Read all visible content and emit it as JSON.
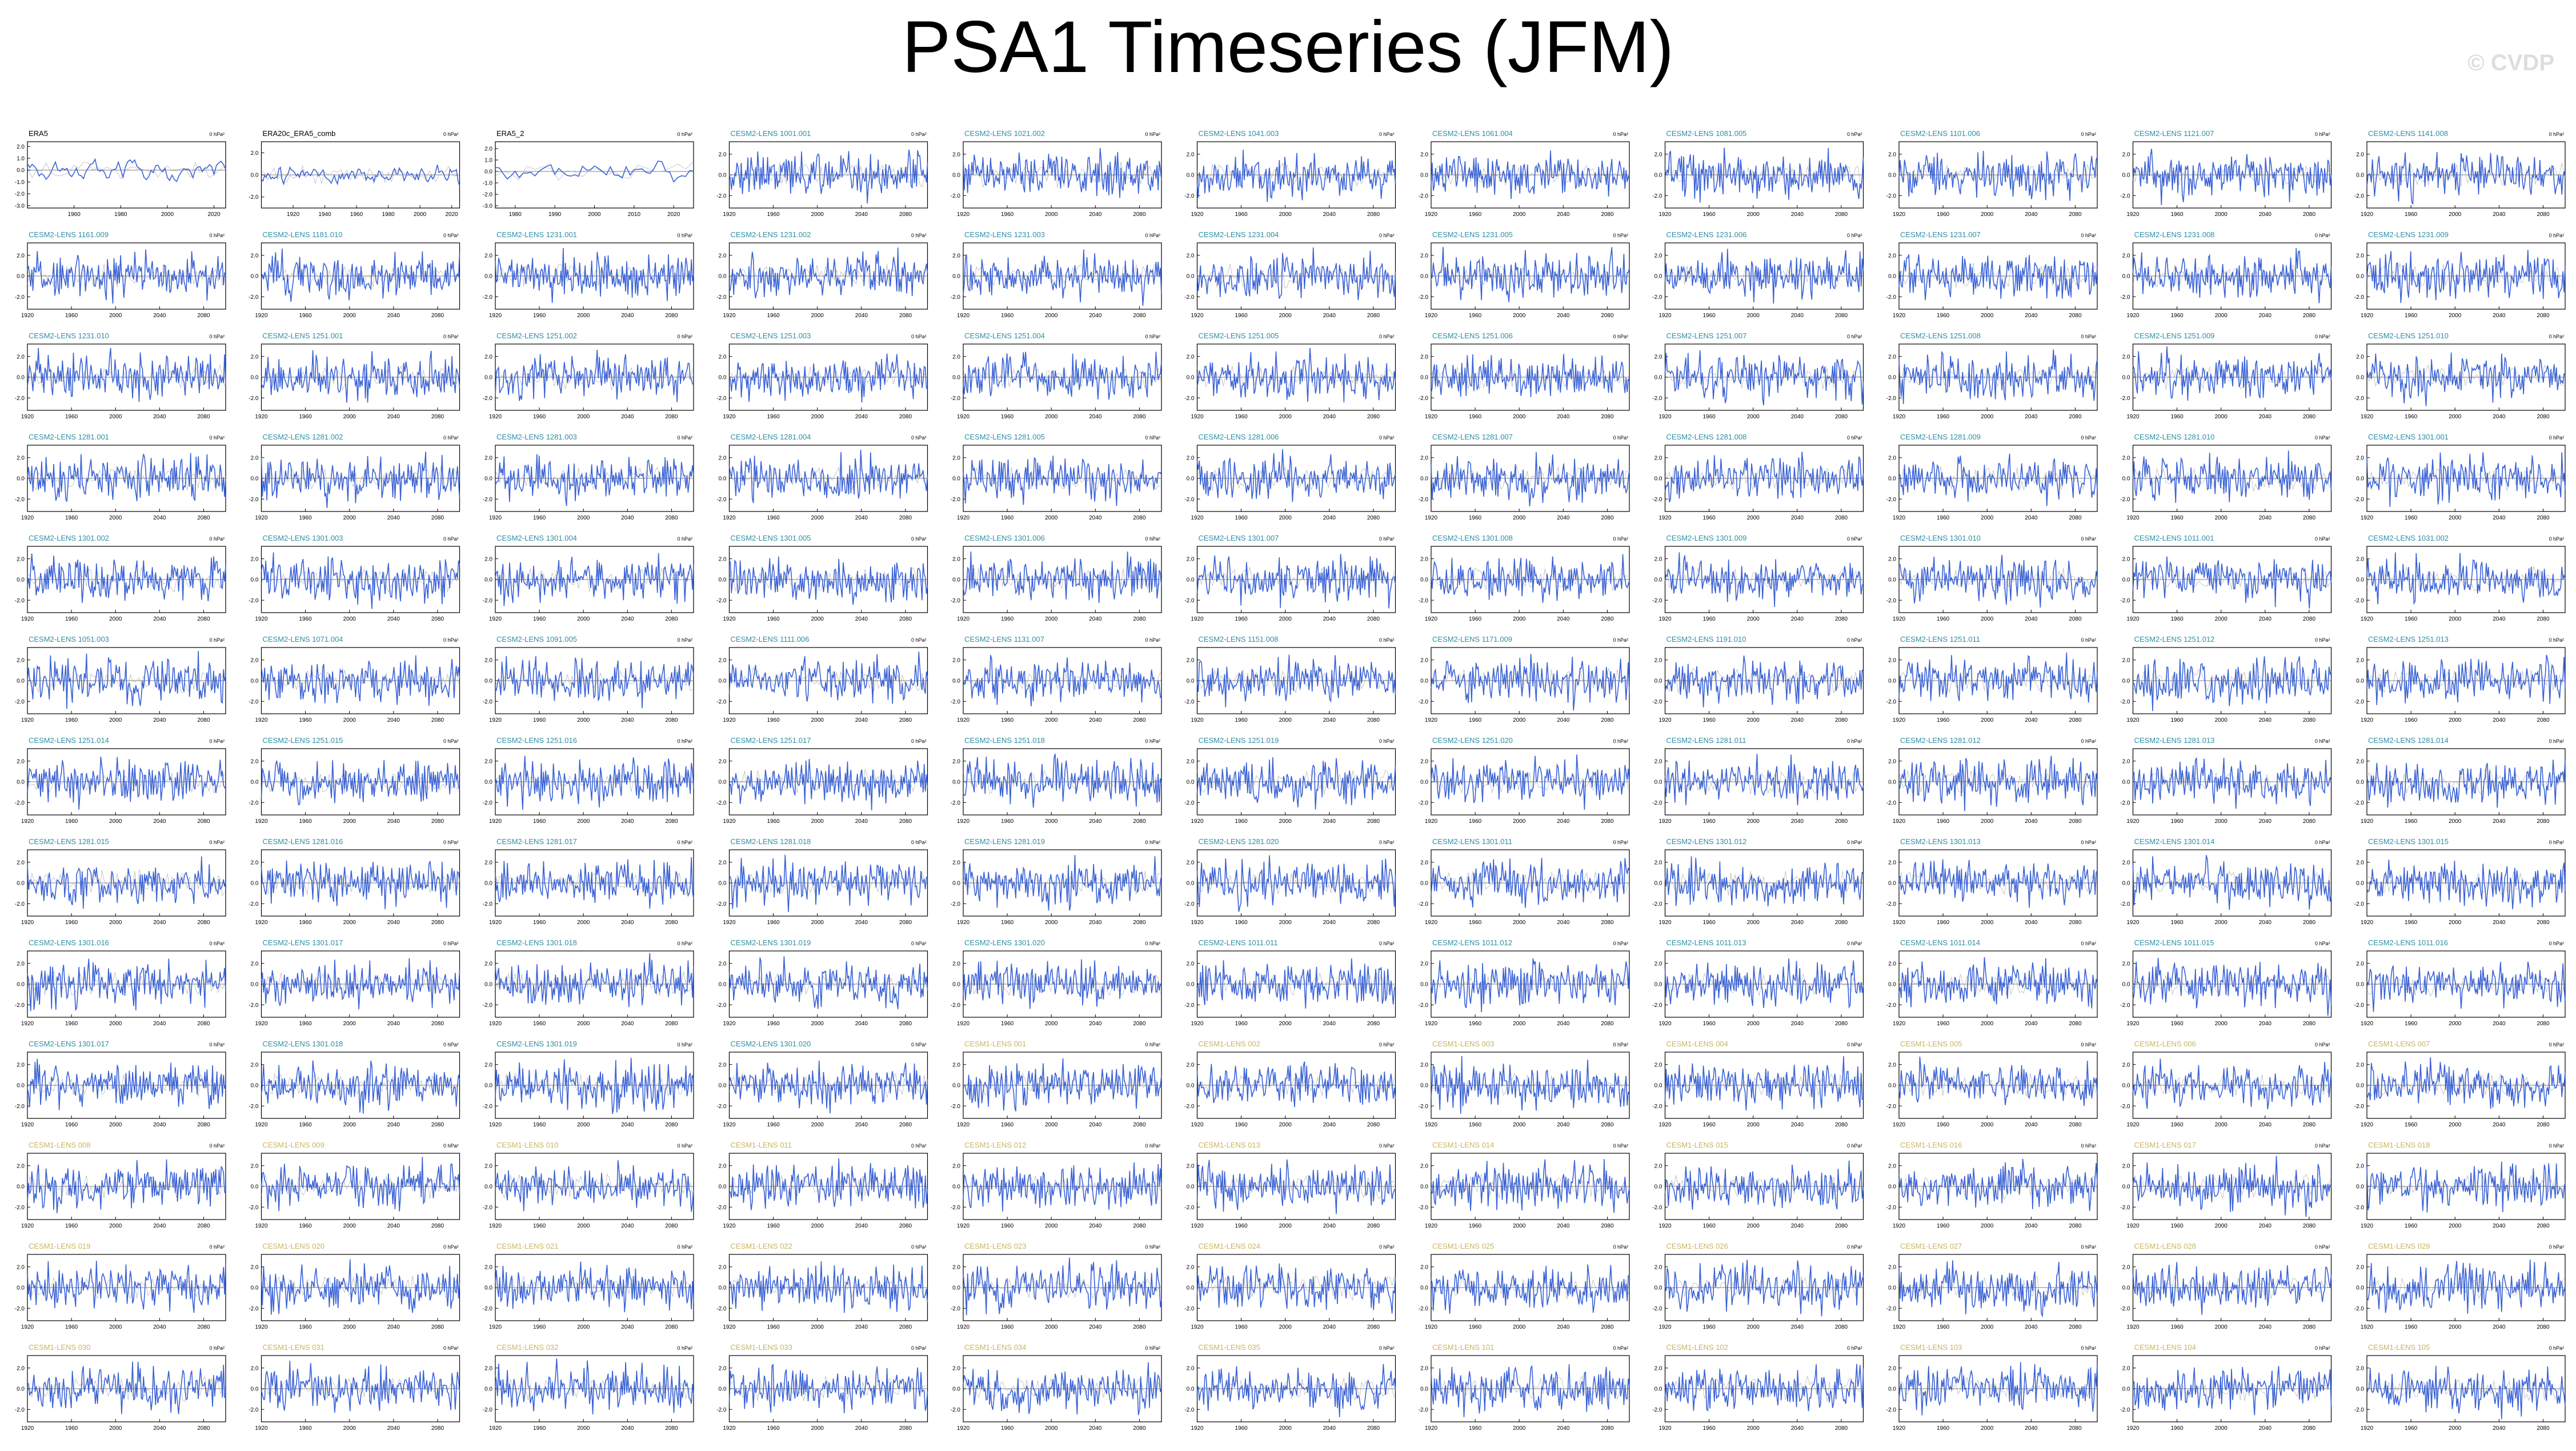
{
  "page": {
    "title": "PSA1 Timeseries (JFM)",
    "watermark": "© CVDP"
  },
  "chart_data": {
    "type": "line",
    "layout": {
      "rows": 13,
      "cols": 11
    },
    "units": "0 hPa²",
    "xlim": [
      1920,
      2100
    ],
    "xticks": [
      1920,
      1960,
      2000,
      2040,
      2080
    ],
    "colors": {
      "series": "#3a62d6",
      "trend": "#8a8a8a",
      "obs_title": "#000000",
      "lens2_title": "#2e8fa3",
      "lens1_title": "#cbb45f",
      "axis": "#000000"
    },
    "note": "blue series values are illustrative; 143 monthly-resolution ensemble panels, values not legible",
    "panels": [
      {
        "title": "ERA5",
        "group": "obs",
        "xticks": [
          1960,
          1980,
          2000,
          2020
        ],
        "xlim": [
          1940,
          2025
        ],
        "yticks": [
          "2.0",
          "1.0",
          "0.0",
          "-1.0",
          "-2.0",
          "-3.0"
        ],
        "ylim": [
          -3.2,
          2.4
        ]
      },
      {
        "title": "ERA20c_ERA5_comb",
        "group": "obs",
        "xticks": [
          1920,
          1940,
          1960,
          1980,
          2000,
          2020
        ],
        "xlim": [
          1900,
          2025
        ],
        "yticks": [
          "2.0",
          "0.0",
          "-2.0"
        ],
        "ylim": [
          -3,
          3
        ]
      },
      {
        "title": "ERA5_2",
        "group": "obs",
        "xticks": [
          1980,
          1990,
          2000,
          2010,
          2020
        ],
        "xlim": [
          1975,
          2025
        ],
        "yticks": [
          "2.0",
          "1.0",
          "0.0",
          "-1.0",
          "-2.0",
          "-3.0"
        ],
        "ylim": [
          -3.2,
          2.6
        ]
      },
      {
        "title": "CESM2-LENS 1001.001",
        "group": "lens2"
      },
      {
        "title": "CESM2-LENS 1021.002",
        "group": "lens2"
      },
      {
        "title": "CESM2-LENS 1041.003",
        "group": "lens2"
      },
      {
        "title": "CESM2-LENS 1061.004",
        "group": "lens2"
      },
      {
        "title": "CESM2-LENS 1081.005",
        "group": "lens2"
      },
      {
        "title": "CESM2-LENS 1101.006",
        "group": "lens2"
      },
      {
        "title": "CESM2-LENS 1121.007",
        "group": "lens2"
      },
      {
        "title": "CESM2-LENS 1141.008",
        "group": "lens2"
      },
      {
        "title": "CESM2-LENS 1161.009",
        "group": "lens2"
      },
      {
        "title": "CESM2-LENS 1181.010",
        "group": "lens2"
      },
      {
        "title": "CESM2-LENS 1231.001",
        "group": "lens2"
      },
      {
        "title": "CESM2-LENS 1231.002",
        "group": "lens2"
      },
      {
        "title": "CESM2-LENS 1231.003",
        "group": "lens2"
      },
      {
        "title": "CESM2-LENS 1231.004",
        "group": "lens2"
      },
      {
        "title": "CESM2-LENS 1231.005",
        "group": "lens2"
      },
      {
        "title": "CESM2-LENS 1231.006",
        "group": "lens2"
      },
      {
        "title": "CESM2-LENS 1231.007",
        "group": "lens2"
      },
      {
        "title": "CESM2-LENS 1231.008",
        "group": "lens2"
      },
      {
        "title": "CESM2-LENS 1231.009",
        "group": "lens2"
      },
      {
        "title": "CESM2-LENS 1231.010",
        "group": "lens2"
      },
      {
        "title": "CESM2-LENS 1251.001",
        "group": "lens2"
      },
      {
        "title": "CESM2-LENS 1251.002",
        "group": "lens2"
      },
      {
        "title": "CESM2-LENS 1251.003",
        "group": "lens2"
      },
      {
        "title": "CESM2-LENS 1251.004",
        "group": "lens2"
      },
      {
        "title": "CESM2-LENS 1251.005",
        "group": "lens2"
      },
      {
        "title": "CESM2-LENS 1251.006",
        "group": "lens2"
      },
      {
        "title": "CESM2-LENS 1251.007",
        "group": "lens2"
      },
      {
        "title": "CESM2-LENS 1251.008",
        "group": "lens2"
      },
      {
        "title": "CESM2-LENS 1251.009",
        "group": "lens2"
      },
      {
        "title": "CESM2-LENS 1251.010",
        "group": "lens2"
      },
      {
        "title": "CESM2-LENS 1281.001",
        "group": "lens2"
      },
      {
        "title": "CESM2-LENS 1281.002",
        "group": "lens2"
      },
      {
        "title": "CESM2-LENS 1281.003",
        "group": "lens2"
      },
      {
        "title": "CESM2-LENS 1281.004",
        "group": "lens2"
      },
      {
        "title": "CESM2-LENS 1281.005",
        "group": "lens2"
      },
      {
        "title": "CESM2-LENS 1281.006",
        "group": "lens2"
      },
      {
        "title": "CESM2-LENS 1281.007",
        "group": "lens2"
      },
      {
        "title": "CESM2-LENS 1281.008",
        "group": "lens2"
      },
      {
        "title": "CESM2-LENS 1281.009",
        "group": "lens2"
      },
      {
        "title": "CESM2-LENS 1281.010",
        "group": "lens2"
      },
      {
        "title": "CESM2-LENS 1301.001",
        "group": "lens2"
      },
      {
        "title": "CESM2-LENS 1301.002",
        "group": "lens2"
      },
      {
        "title": "CESM2-LENS 1301.003",
        "group": "lens2"
      },
      {
        "title": "CESM2-LENS 1301.004",
        "group": "lens2"
      },
      {
        "title": "CESM2-LENS 1301.005",
        "group": "lens2"
      },
      {
        "title": "CESM2-LENS 1301.006",
        "group": "lens2"
      },
      {
        "title": "CESM2-LENS 1301.007",
        "group": "lens2"
      },
      {
        "title": "CESM2-LENS 1301.008",
        "group": "lens2"
      },
      {
        "title": "CESM2-LENS 1301.009",
        "group": "lens2"
      },
      {
        "title": "CESM2-LENS 1301.010",
        "group": "lens2"
      },
      {
        "title": "CESM2-LENS 1011.001",
        "group": "lens2"
      },
      {
        "title": "CESM2-LENS 1031.002",
        "group": "lens2"
      },
      {
        "title": "CESM2-LENS 1051.003",
        "group": "lens2"
      },
      {
        "title": "CESM2-LENS 1071.004",
        "group": "lens2"
      },
      {
        "title": "CESM2-LENS 1091.005",
        "group": "lens2"
      },
      {
        "title": "CESM2-LENS 1111.006",
        "group": "lens2"
      },
      {
        "title": "CESM2-LENS 1131.007",
        "group": "lens2"
      },
      {
        "title": "CESM2-LENS 1151.008",
        "group": "lens2"
      },
      {
        "title": "CESM2-LENS 1171.009",
        "group": "lens2"
      },
      {
        "title": "CESM2-LENS 1191.010",
        "group": "lens2"
      },
      {
        "title": "CESM2-LENS 1251.011",
        "group": "lens2"
      },
      {
        "title": "CESM2-LENS 1251.012",
        "group": "lens2"
      },
      {
        "title": "CESM2-LENS 1251.013",
        "group": "lens2"
      },
      {
        "title": "CESM2-LENS 1251.014",
        "group": "lens2"
      },
      {
        "title": "CESM2-LENS 1251.015",
        "group": "lens2"
      },
      {
        "title": "CESM2-LENS 1251.016",
        "group": "lens2"
      },
      {
        "title": "CESM2-LENS 1251.017",
        "group": "lens2"
      },
      {
        "title": "CESM2-LENS 1251.018",
        "group": "lens2"
      },
      {
        "title": "CESM2-LENS 1251.019",
        "group": "lens2"
      },
      {
        "title": "CESM2-LENS 1251.020",
        "group": "lens2"
      },
      {
        "title": "CESM2-LENS 1281.011",
        "group": "lens2"
      },
      {
        "title": "CESM2-LENS 1281.012",
        "group": "lens2"
      },
      {
        "title": "CESM2-LENS 1281.013",
        "group": "lens2"
      },
      {
        "title": "CESM2-LENS 1281.014",
        "group": "lens2"
      },
      {
        "title": "CESM2-LENS 1281.015",
        "group": "lens2"
      },
      {
        "title": "CESM2-LENS 1281.016",
        "group": "lens2"
      },
      {
        "title": "CESM2-LENS 1281.017",
        "group": "lens2"
      },
      {
        "title": "CESM2-LENS 1281.018",
        "group": "lens2"
      },
      {
        "title": "CESM2-LENS 1281.019",
        "group": "lens2"
      },
      {
        "title": "CESM2-LENS 1281.020",
        "group": "lens2"
      },
      {
        "title": "CESM2-LENS 1301.011",
        "group": "lens2"
      },
      {
        "title": "CESM2-LENS 1301.012",
        "group": "lens2"
      },
      {
        "title": "CESM2-LENS 1301.013",
        "group": "lens2"
      },
      {
        "title": "CESM2-LENS 1301.014",
        "group": "lens2"
      },
      {
        "title": "CESM2-LENS 1301.015",
        "group": "lens2"
      },
      {
        "title": "CESM2-LENS 1301.016",
        "group": "lens2"
      },
      {
        "title": "CESM2-LENS 1301.017",
        "group": "lens2"
      },
      {
        "title": "CESM2-LENS 1301.018",
        "group": "lens2"
      },
      {
        "title": "CESM2-LENS 1301.019",
        "group": "lens2"
      },
      {
        "title": "CESM2-LENS 1301.020",
        "group": "lens2"
      },
      {
        "title": "CESM2-LENS 1011.011",
        "group": "lens2"
      },
      {
        "title": "CESM2-LENS 1011.012",
        "group": "lens2"
      },
      {
        "title": "CESM2-LENS 1011.013",
        "group": "lens2"
      },
      {
        "title": "CESM2-LENS 1011.014",
        "group": "lens2"
      },
      {
        "title": "CESM2-LENS 1011.015",
        "group": "lens2"
      },
      {
        "title": "CESM2-LENS 1011.016",
        "group": "lens2"
      },
      {
        "title": "CESM2-LENS 1301.017",
        "group": "lens2"
      },
      {
        "title": "CESM2-LENS 1301.018",
        "group": "lens2"
      },
      {
        "title": "CESM2-LENS 1301.019",
        "group": "lens2"
      },
      {
        "title": "CESM2-LENS 1301.020",
        "group": "lens2"
      },
      {
        "title": "CESM1-LENS 001",
        "group": "lens1"
      },
      {
        "title": "CESM1-LENS 002",
        "group": "lens1"
      },
      {
        "title": "CESM1-LENS 003",
        "group": "lens1"
      },
      {
        "title": "CESM1-LENS 004",
        "group": "lens1"
      },
      {
        "title": "CESM1-LENS 005",
        "group": "lens1"
      },
      {
        "title": "CESM1-LENS 006",
        "group": "lens1"
      },
      {
        "title": "CESM1-LENS 007",
        "group": "lens1"
      },
      {
        "title": "CESM1-LENS 008",
        "group": "lens1"
      },
      {
        "title": "CESM1-LENS 009",
        "group": "lens1"
      },
      {
        "title": "CESM1-LENS 010",
        "group": "lens1"
      },
      {
        "title": "CESM1-LENS 011",
        "group": "lens1"
      },
      {
        "title": "CESM1-LENS 012",
        "group": "lens1"
      },
      {
        "title": "CESM1-LENS 013",
        "group": "lens1"
      },
      {
        "title": "CESM1-LENS 014",
        "group": "lens1"
      },
      {
        "title": "CESM1-LENS 015",
        "group": "lens1"
      },
      {
        "title": "CESM1-LENS 016",
        "group": "lens1"
      },
      {
        "title": "CESM1-LENS 017",
        "group": "lens1"
      },
      {
        "title": "CESM1-LENS 018",
        "group": "lens1"
      },
      {
        "title": "CESM1-LENS 019",
        "group": "lens1"
      },
      {
        "title": "CESM1-LENS 020",
        "group": "lens1"
      },
      {
        "title": "CESM1-LENS 021",
        "group": "lens1"
      },
      {
        "title": "CESM1-LENS 022",
        "group": "lens1"
      },
      {
        "title": "CESM1-LENS 023",
        "group": "lens1"
      },
      {
        "title": "CESM1-LENS 024",
        "group": "lens1"
      },
      {
        "title": "CESM1-LENS 025",
        "group": "lens1"
      },
      {
        "title": "CESM1-LENS 026",
        "group": "lens1"
      },
      {
        "title": "CESM1-LENS 027",
        "group": "lens1"
      },
      {
        "title": "CESM1-LENS 028",
        "group": "lens1"
      },
      {
        "title": "CESM1-LENS 029",
        "group": "lens1"
      },
      {
        "title": "CESM1-LENS 030",
        "group": "lens1"
      },
      {
        "title": "CESM1-LENS 031",
        "group": "lens1"
      },
      {
        "title": "CESM1-LENS 032",
        "group": "lens1"
      },
      {
        "title": "CESM1-LENS 033",
        "group": "lens1"
      },
      {
        "title": "CESM1-LENS 034",
        "group": "lens1"
      },
      {
        "title": "CESM1-LENS 035",
        "group": "lens1"
      },
      {
        "title": "CESM1-LENS 101",
        "group": "lens1"
      },
      {
        "title": "CESM1-LENS 102",
        "group": "lens1"
      },
      {
        "title": "CESM1-LENS 103",
        "group": "lens1"
      },
      {
        "title": "CESM1-LENS 104",
        "group": "lens1"
      },
      {
        "title": "CESM1-LENS 105",
        "group": "lens1"
      }
    ]
  }
}
